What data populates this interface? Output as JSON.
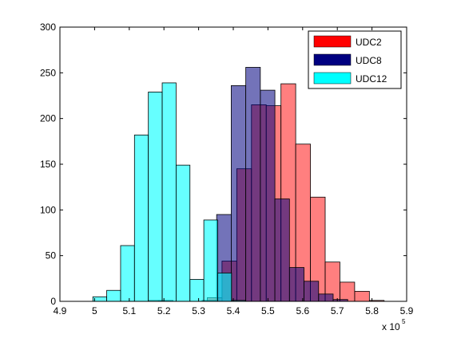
{
  "chart_data": {
    "type": "bar",
    "title": "",
    "xlabel": "",
    "ylabel": "",
    "x_multiplier_label": "x 10",
    "x_multiplier_exponent": "5",
    "xlim": [
      4.9,
      5.9
    ],
    "ylim": [
      0,
      300
    ],
    "xticks": [
      4.9,
      5.0,
      5.1,
      5.2,
      5.3,
      5.4,
      5.5,
      5.6,
      5.7,
      5.8,
      5.9
    ],
    "xtick_labels": [
      "4.9",
      "5",
      "5.1",
      "5.2",
      "5.3",
      "5.4",
      "5.5",
      "5.6",
      "5.7",
      "5.8",
      "5.9"
    ],
    "yticks": [
      0,
      50,
      100,
      150,
      200,
      250,
      300
    ],
    "ytick_labels": [
      "0",
      "50",
      "100",
      "150",
      "200",
      "250",
      "300"
    ],
    "grid": false,
    "legend_position": "top-right",
    "series": [
      {
        "name": "UDC2",
        "color": "#ff0000",
        "opacity": 0.5,
        "bin_width": 0.0425,
        "bin_starts": [
          5.155,
          5.1975,
          5.24,
          5.2825,
          5.325,
          5.3675,
          5.41,
          5.4525,
          5.495,
          5.5375,
          5.58,
          5.6225,
          5.665,
          5.7075,
          5.75,
          5.7925
        ],
        "values": [
          1,
          0,
          0,
          0,
          4,
          44,
          145,
          215,
          214,
          238,
          172,
          114,
          43,
          21,
          11,
          1
        ]
      },
      {
        "name": "UDC8",
        "color": "#000080",
        "opacity": 0.55,
        "bin_width": 0.042,
        "bin_starts": [
          5.184,
          5.226,
          5.268,
          5.31,
          5.352,
          5.394,
          5.436,
          5.478,
          5.52,
          5.562,
          5.604,
          5.646,
          5.688,
          5.73
        ],
        "values": [
          1,
          0,
          0,
          1,
          95,
          236,
          256,
          231,
          112,
          37,
          22,
          8,
          2,
          0
        ]
      },
      {
        "name": "UDC12",
        "color": "#00ffff",
        "opacity": 0.6,
        "bin_width": 0.04,
        "bin_starts": [
          4.995,
          5.035,
          5.075,
          5.115,
          5.155,
          5.195,
          5.235,
          5.275,
          5.315,
          5.355,
          5.395
        ],
        "values": [
          5,
          12,
          61,
          182,
          229,
          239,
          149,
          24,
          89,
          31,
          1
        ]
      }
    ]
  }
}
